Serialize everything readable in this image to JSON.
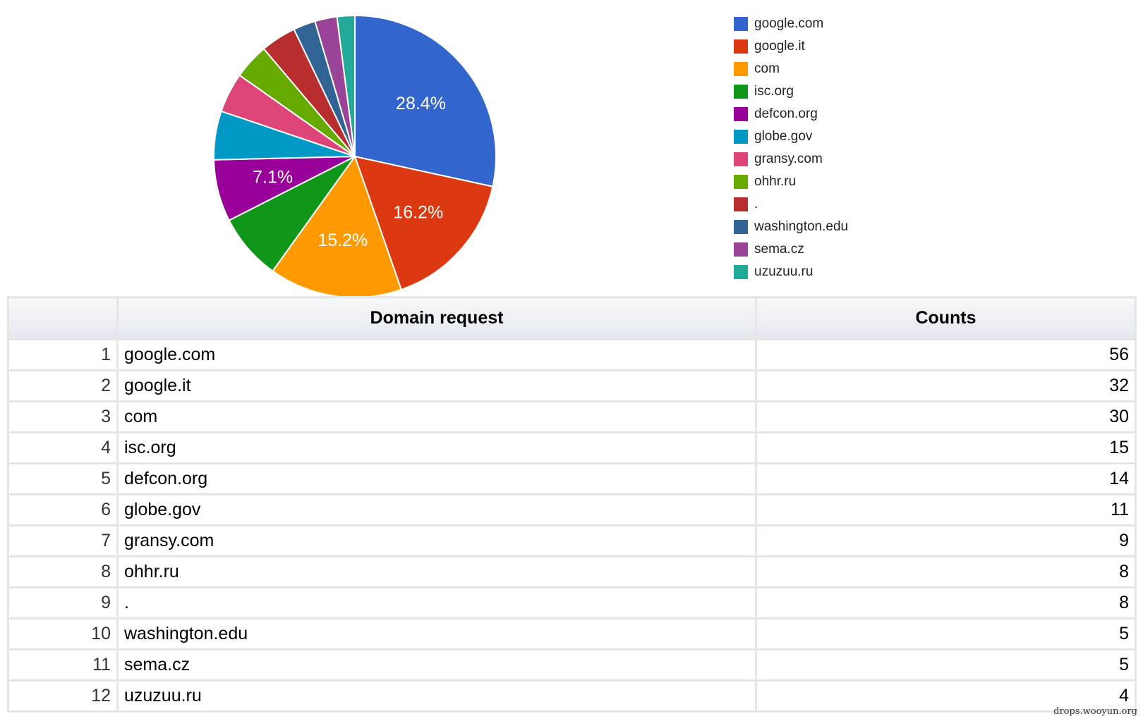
{
  "chart_data": {
    "type": "pie",
    "categories": [
      "google.com",
      "google.it",
      "com",
      "isc.org",
      "defcon.org",
      "globe.gov",
      "gransy.com",
      "ohhr.ru",
      ".",
      "washington.edu",
      "sema.cz",
      "uzuzuu.ru"
    ],
    "values": [
      56,
      32,
      30,
      15,
      14,
      11,
      9,
      8,
      8,
      5,
      5,
      4
    ],
    "colors": [
      "#3366cc",
      "#dc3912",
      "#ff9900",
      "#109618",
      "#990099",
      "#0099c6",
      "#dd4477",
      "#66aa00",
      "#b82e2e",
      "#316395",
      "#994499",
      "#22aa99"
    ],
    "data_labels": [
      "28.4%",
      "16.2%",
      "15.2%",
      "",
      "7.1%",
      "",
      "",
      "",
      "",
      "",
      "",
      ""
    ],
    "legend_position": "right"
  },
  "table": {
    "headers": [
      "",
      "Domain request",
      "Counts"
    ],
    "rows": [
      {
        "index": "1",
        "domain": "google.com",
        "count": "56"
      },
      {
        "index": "2",
        "domain": "google.it",
        "count": "32"
      },
      {
        "index": "3",
        "domain": "com",
        "count": "30"
      },
      {
        "index": "4",
        "domain": "isc.org",
        "count": "15"
      },
      {
        "index": "5",
        "domain": "defcon.org",
        "count": "14"
      },
      {
        "index": "6",
        "domain": "globe.gov",
        "count": "11"
      },
      {
        "index": "7",
        "domain": "gransy.com",
        "count": "9"
      },
      {
        "index": "8",
        "domain": "ohhr.ru",
        "count": "8"
      },
      {
        "index": "9",
        "domain": ".",
        "count": "8"
      },
      {
        "index": "10",
        "domain": "washington.edu",
        "count": "5"
      },
      {
        "index": "11",
        "domain": "sema.cz",
        "count": "5"
      },
      {
        "index": "12",
        "domain": "uzuzuu.ru",
        "count": "4"
      }
    ]
  },
  "watermark": "drops.wooyun.org"
}
